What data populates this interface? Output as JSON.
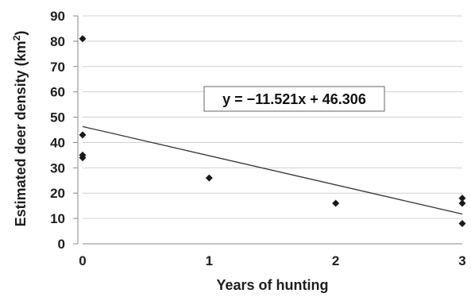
{
  "chart_data": {
    "type": "scatter",
    "xlabel": "Years of hunting",
    "ylabel_main": "Estimated deer density (km",
    "ylabel_sup": "2",
    "ylabel_close": ")",
    "xlim": [
      0,
      3
    ],
    "ylim": [
      0,
      90
    ],
    "x_ticks": [
      0,
      1,
      2,
      3
    ],
    "y_ticks": [
      0,
      10,
      20,
      30,
      40,
      50,
      60,
      70,
      80,
      90
    ],
    "grid": "horizontal",
    "points": [
      {
        "x": 0,
        "y": 81
      },
      {
        "x": 0,
        "y": 43
      },
      {
        "x": 0,
        "y": 35
      },
      {
        "x": 0,
        "y": 34
      },
      {
        "x": 1,
        "y": 26
      },
      {
        "x": 2,
        "y": 16
      },
      {
        "x": 3,
        "y": 18
      },
      {
        "x": 3,
        "y": 16
      },
      {
        "x": 3,
        "y": 8
      }
    ],
    "trendline": {
      "slope": -11.521,
      "intercept": 46.306,
      "equation": "y = −11.521x + 46.306"
    },
    "colors": {
      "points": "#1a1a1a",
      "trendline": "#333333",
      "grid": "#d0d0d0",
      "axis": "#888888"
    }
  }
}
